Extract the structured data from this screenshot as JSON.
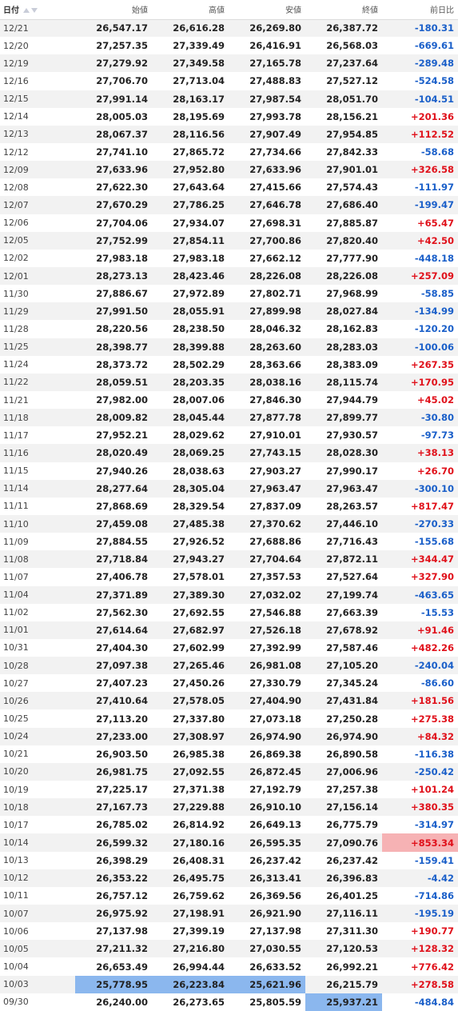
{
  "header": {
    "date": "日付",
    "open": "始値",
    "high": "高値",
    "low": "安値",
    "close": "終値",
    "change": "前日比"
  },
  "colors": {
    "positive": "#e0101a",
    "negative": "#1a5fc9",
    "highlight_low": "#8bb7ee",
    "highlight_high_change": "#f6b2b4",
    "row_stripe": "#f2f2f2"
  },
  "rows": [
    {
      "date": "12/21",
      "open": "26,547.17",
      "high": "26,616.28",
      "low": "26,269.80",
      "close": "26,387.72",
      "change": "-180.31"
    },
    {
      "date": "12/20",
      "open": "27,257.35",
      "high": "27,339.49",
      "low": "26,416.91",
      "close": "26,568.03",
      "change": "-669.61"
    },
    {
      "date": "12/19",
      "open": "27,279.92",
      "high": "27,349.58",
      "low": "27,165.78",
      "close": "27,237.64",
      "change": "-289.48"
    },
    {
      "date": "12/16",
      "open": "27,706.70",
      "high": "27,713.04",
      "low": "27,488.83",
      "close": "27,527.12",
      "change": "-524.58"
    },
    {
      "date": "12/15",
      "open": "27,991.14",
      "high": "28,163.17",
      "low": "27,987.54",
      "close": "28,051.70",
      "change": "-104.51"
    },
    {
      "date": "12/14",
      "open": "28,005.03",
      "high": "28,195.69",
      "low": "27,993.78",
      "close": "28,156.21",
      "change": "+201.36"
    },
    {
      "date": "12/13",
      "open": "28,067.37",
      "high": "28,116.56",
      "low": "27,907.49",
      "close": "27,954.85",
      "change": "+112.52"
    },
    {
      "date": "12/12",
      "open": "27,741.10",
      "high": "27,865.72",
      "low": "27,734.66",
      "close": "27,842.33",
      "change": "-58.68"
    },
    {
      "date": "12/09",
      "open": "27,633.96",
      "high": "27,952.80",
      "low": "27,633.96",
      "close": "27,901.01",
      "change": "+326.58"
    },
    {
      "date": "12/08",
      "open": "27,622.30",
      "high": "27,643.64",
      "low": "27,415.66",
      "close": "27,574.43",
      "change": "-111.97"
    },
    {
      "date": "12/07",
      "open": "27,670.29",
      "high": "27,786.25",
      "low": "27,646.78",
      "close": "27,686.40",
      "change": "-199.47"
    },
    {
      "date": "12/06",
      "open": "27,704.06",
      "high": "27,934.07",
      "low": "27,698.31",
      "close": "27,885.87",
      "change": "+65.47"
    },
    {
      "date": "12/05",
      "open": "27,752.99",
      "high": "27,854.11",
      "low": "27,700.86",
      "close": "27,820.40",
      "change": "+42.50"
    },
    {
      "date": "12/02",
      "open": "27,983.18",
      "high": "27,983.18",
      "low": "27,662.12",
      "close": "27,777.90",
      "change": "-448.18"
    },
    {
      "date": "12/01",
      "open": "28,273.13",
      "high": "28,423.46",
      "low": "28,226.08",
      "close": "28,226.08",
      "change": "+257.09"
    },
    {
      "date": "11/30",
      "open": "27,886.67",
      "high": "27,972.89",
      "low": "27,802.71",
      "close": "27,968.99",
      "change": "-58.85"
    },
    {
      "date": "11/29",
      "open": "27,991.50",
      "high": "28,055.91",
      "low": "27,899.98",
      "close": "28,027.84",
      "change": "-134.99"
    },
    {
      "date": "11/28",
      "open": "28,220.56",
      "high": "28,238.50",
      "low": "28,046.32",
      "close": "28,162.83",
      "change": "-120.20"
    },
    {
      "date": "11/25",
      "open": "28,398.77",
      "high": "28,399.88",
      "low": "28,263.60",
      "close": "28,283.03",
      "change": "-100.06"
    },
    {
      "date": "11/24",
      "open": "28,373.72",
      "high": "28,502.29",
      "low": "28,363.66",
      "close": "28,383.09",
      "change": "+267.35"
    },
    {
      "date": "11/22",
      "open": "28,059.51",
      "high": "28,203.35",
      "low": "28,038.16",
      "close": "28,115.74",
      "change": "+170.95"
    },
    {
      "date": "11/21",
      "open": "27,982.00",
      "high": "28,007.06",
      "low": "27,846.30",
      "close": "27,944.79",
      "change": "+45.02"
    },
    {
      "date": "11/18",
      "open": "28,009.82",
      "high": "28,045.44",
      "low": "27,877.78",
      "close": "27,899.77",
      "change": "-30.80"
    },
    {
      "date": "11/17",
      "open": "27,952.21",
      "high": "28,029.62",
      "low": "27,910.01",
      "close": "27,930.57",
      "change": "-97.73"
    },
    {
      "date": "11/16",
      "open": "28,020.49",
      "high": "28,069.25",
      "low": "27,743.15",
      "close": "28,028.30",
      "change": "+38.13"
    },
    {
      "date": "11/15",
      "open": "27,940.26",
      "high": "28,038.63",
      "low": "27,903.27",
      "close": "27,990.17",
      "change": "+26.70"
    },
    {
      "date": "11/14",
      "open": "28,277.64",
      "high": "28,305.04",
      "low": "27,963.47",
      "close": "27,963.47",
      "change": "-300.10"
    },
    {
      "date": "11/11",
      "open": "27,868.69",
      "high": "28,329.54",
      "low": "27,837.09",
      "close": "28,263.57",
      "change": "+817.47"
    },
    {
      "date": "11/10",
      "open": "27,459.08",
      "high": "27,485.38",
      "low": "27,370.62",
      "close": "27,446.10",
      "change": "-270.33"
    },
    {
      "date": "11/09",
      "open": "27,884.55",
      "high": "27,926.52",
      "low": "27,688.86",
      "close": "27,716.43",
      "change": "-155.68"
    },
    {
      "date": "11/08",
      "open": "27,718.84",
      "high": "27,943.27",
      "low": "27,704.64",
      "close": "27,872.11",
      "change": "+344.47"
    },
    {
      "date": "11/07",
      "open": "27,406.78",
      "high": "27,578.01",
      "low": "27,357.53",
      "close": "27,527.64",
      "change": "+327.90"
    },
    {
      "date": "11/04",
      "open": "27,371.89",
      "high": "27,389.30",
      "low": "27,032.02",
      "close": "27,199.74",
      "change": "-463.65"
    },
    {
      "date": "11/02",
      "open": "27,562.30",
      "high": "27,692.55",
      "low": "27,546.88",
      "close": "27,663.39",
      "change": "-15.53"
    },
    {
      "date": "11/01",
      "open": "27,614.64",
      "high": "27,682.97",
      "low": "27,526.18",
      "close": "27,678.92",
      "change": "+91.46"
    },
    {
      "date": "10/31",
      "open": "27,404.30",
      "high": "27,602.99",
      "low": "27,392.99",
      "close": "27,587.46",
      "change": "+482.26"
    },
    {
      "date": "10/28",
      "open": "27,097.38",
      "high": "27,265.46",
      "low": "26,981.08",
      "close": "27,105.20",
      "change": "-240.04"
    },
    {
      "date": "10/27",
      "open": "27,407.23",
      "high": "27,450.26",
      "low": "27,330.79",
      "close": "27,345.24",
      "change": "-86.60"
    },
    {
      "date": "10/26",
      "open": "27,410.64",
      "high": "27,578.05",
      "low": "27,404.90",
      "close": "27,431.84",
      "change": "+181.56"
    },
    {
      "date": "10/25",
      "open": "27,113.20",
      "high": "27,337.80",
      "low": "27,073.18",
      "close": "27,250.28",
      "change": "+275.38"
    },
    {
      "date": "10/24",
      "open": "27,233.00",
      "high": "27,308.97",
      "low": "26,974.90",
      "close": "26,974.90",
      "change": "+84.32"
    },
    {
      "date": "10/21",
      "open": "26,903.50",
      "high": "26,985.38",
      "low": "26,869.38",
      "close": "26,890.58",
      "change": "-116.38"
    },
    {
      "date": "10/20",
      "open": "26,981.75",
      "high": "27,092.55",
      "low": "26,872.45",
      "close": "27,006.96",
      "change": "-250.42"
    },
    {
      "date": "10/19",
      "open": "27,225.17",
      "high": "27,371.38",
      "low": "27,192.79",
      "close": "27,257.38",
      "change": "+101.24"
    },
    {
      "date": "10/18",
      "open": "27,167.73",
      "high": "27,229.88",
      "low": "26,910.10",
      "close": "27,156.14",
      "change": "+380.35"
    },
    {
      "date": "10/17",
      "open": "26,785.02",
      "high": "26,814.92",
      "low": "26,649.13",
      "close": "26,775.79",
      "change": "-314.97"
    },
    {
      "date": "10/14",
      "open": "26,599.32",
      "high": "27,180.16",
      "low": "26,595.35",
      "close": "27,090.76",
      "change": "+853.34"
    },
    {
      "date": "10/13",
      "open": "26,398.29",
      "high": "26,408.31",
      "low": "26,237.42",
      "close": "26,237.42",
      "change": "-159.41"
    },
    {
      "date": "10/12",
      "open": "26,353.22",
      "high": "26,495.75",
      "low": "26,313.41",
      "close": "26,396.83",
      "change": "-4.42"
    },
    {
      "date": "10/11",
      "open": "26,757.12",
      "high": "26,759.62",
      "low": "26,369.56",
      "close": "26,401.25",
      "change": "-714.86"
    },
    {
      "date": "10/07",
      "open": "26,975.92",
      "high": "27,198.91",
      "low": "26,921.90",
      "close": "27,116.11",
      "change": "-195.19"
    },
    {
      "date": "10/06",
      "open": "27,137.98",
      "high": "27,399.19",
      "low": "27,137.98",
      "close": "27,311.30",
      "change": "+190.77"
    },
    {
      "date": "10/05",
      "open": "27,211.32",
      "high": "27,216.80",
      "low": "27,030.55",
      "close": "27,120.53",
      "change": "+128.32"
    },
    {
      "date": "10/04",
      "open": "26,653.49",
      "high": "26,994.44",
      "low": "26,633.52",
      "close": "26,992.21",
      "change": "+776.42"
    },
    {
      "date": "10/03",
      "open": "25,778.95",
      "high": "26,223.84",
      "low": "25,621.96",
      "close": "26,215.79",
      "change": "+278.58"
    },
    {
      "date": "09/30",
      "open": "26,240.00",
      "high": "26,273.65",
      "low": "25,805.59",
      "close": "25,937.21",
      "change": "-484.84"
    }
  ],
  "highlights": {
    "10/14": [
      "change-red"
    ],
    "10/03": [
      "open-blue",
      "high-blue",
      "low-blue"
    ],
    "09/30": [
      "close-blue"
    ]
  }
}
